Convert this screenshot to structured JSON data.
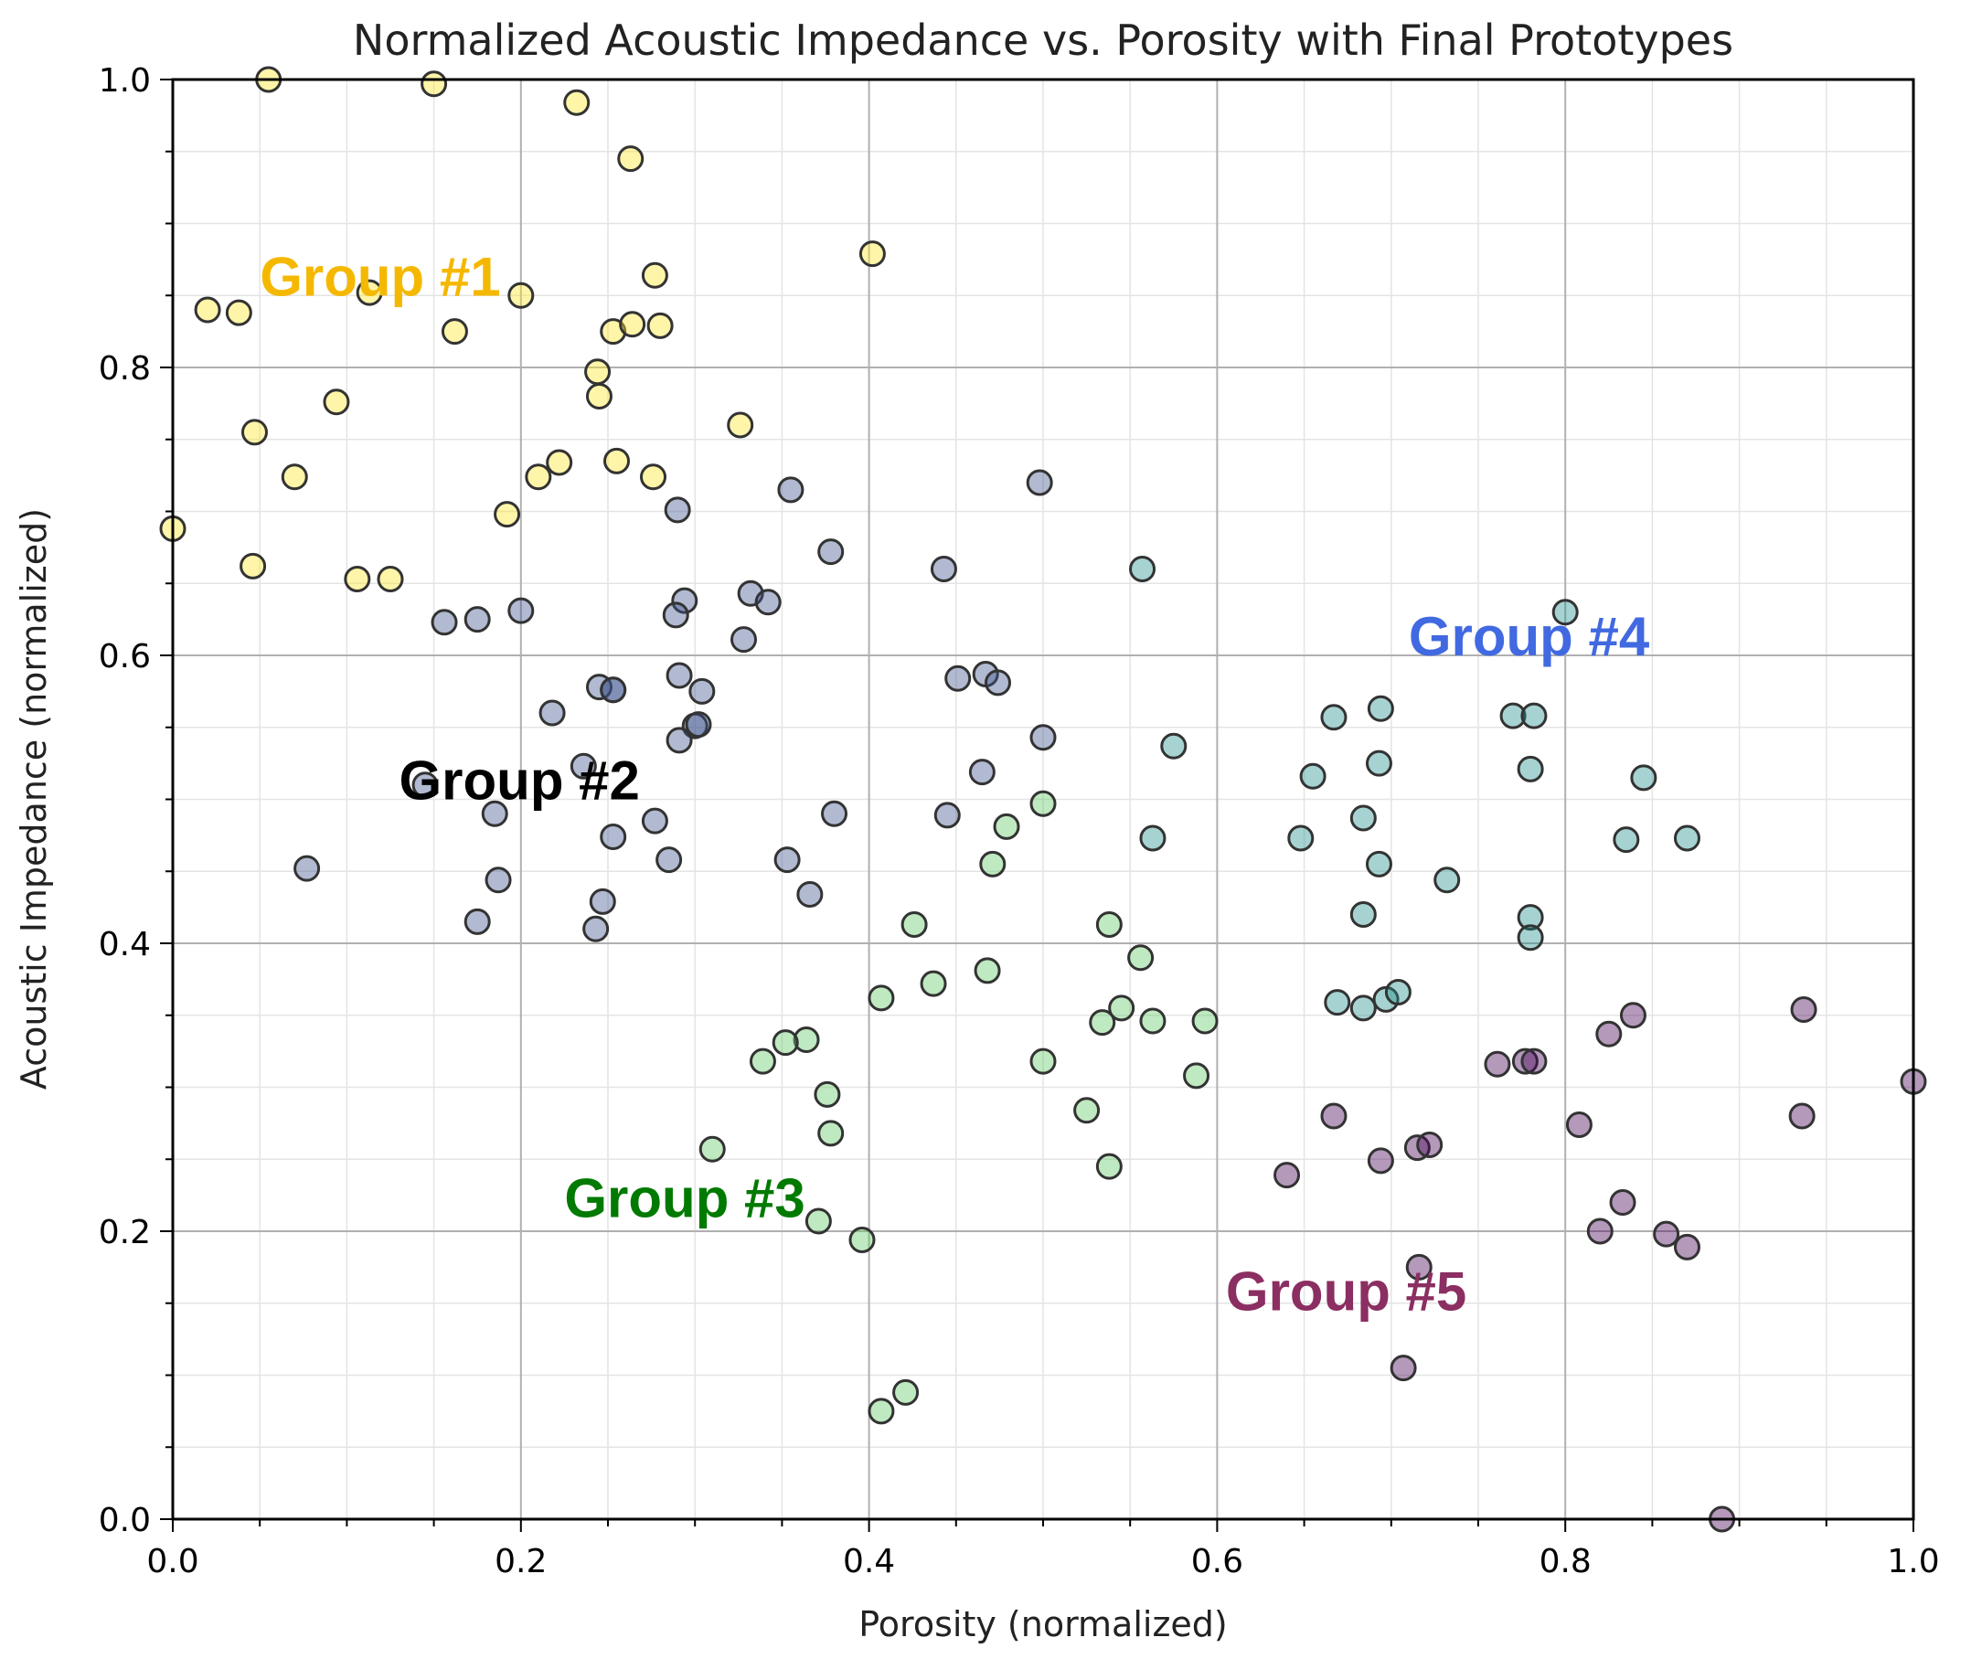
{
  "chart_data": {
    "type": "scatter",
    "title": "Normalized Acoustic Impedance vs. Porosity with Final Prototypes",
    "xlabel": "Porosity (normalized)",
    "ylabel": "Acoustic Impedance (normalized)",
    "xlim": [
      0,
      1
    ],
    "ylim": [
      0,
      1
    ],
    "xticks": [
      "0.0",
      "0.2",
      "0.4",
      "0.6",
      "0.8",
      "1.0"
    ],
    "yticks": [
      "0.0",
      "0.2",
      "0.4",
      "0.6",
      "0.8",
      "1.0"
    ],
    "grid": true,
    "series": [
      {
        "name": "Group #1",
        "color": "#fde725",
        "label_color": "#f5b800",
        "label_pos": [
          0.05,
          0.85
        ],
        "points": [
          [
            0.055,
            1.0
          ],
          [
            0.15,
            0.997
          ],
          [
            0.232,
            0.984
          ],
          [
            0.263,
            0.945
          ],
          [
            0.02,
            0.84
          ],
          [
            0.038,
            0.838
          ],
          [
            0.113,
            0.852
          ],
          [
            0.2,
            0.85
          ],
          [
            0.162,
            0.825
          ],
          [
            0.253,
            0.825
          ],
          [
            0.264,
            0.83
          ],
          [
            0.28,
            0.829
          ],
          [
            0.277,
            0.864
          ],
          [
            0.402,
            0.879
          ],
          [
            0.244,
            0.797
          ],
          [
            0.245,
            0.78
          ],
          [
            0.094,
            0.776
          ],
          [
            0.047,
            0.755
          ],
          [
            0.326,
            0.76
          ],
          [
            0.07,
            0.724
          ],
          [
            0.21,
            0.724
          ],
          [
            0.222,
            0.734
          ],
          [
            0.255,
            0.735
          ],
          [
            0.276,
            0.724
          ],
          [
            0.192,
            0.698
          ],
          [
            0.0,
            0.688
          ],
          [
            0.046,
            0.662
          ],
          [
            0.106,
            0.653
          ],
          [
            0.125,
            0.653
          ]
        ]
      },
      {
        "name": "Group #2",
        "color": "#3b528b",
        "label_color": "#000000",
        "label_pos": [
          0.13,
          0.5
        ],
        "points": [
          [
            0.355,
            0.715
          ],
          [
            0.29,
            0.701
          ],
          [
            0.378,
            0.672
          ],
          [
            0.332,
            0.643
          ],
          [
            0.342,
            0.637
          ],
          [
            0.294,
            0.638
          ],
          [
            0.289,
            0.628
          ],
          [
            0.2,
            0.631
          ],
          [
            0.175,
            0.625
          ],
          [
            0.156,
            0.623
          ],
          [
            0.328,
            0.611
          ],
          [
            0.291,
            0.586
          ],
          [
            0.304,
            0.575
          ],
          [
            0.245,
            0.578
          ],
          [
            0.253,
            0.576
          ],
          [
            0.253,
            0.576
          ],
          [
            0.218,
            0.56
          ],
          [
            0.3,
            0.551
          ],
          [
            0.302,
            0.552
          ],
          [
            0.291,
            0.541
          ],
          [
            0.236,
            0.523
          ],
          [
            0.145,
            0.51
          ],
          [
            0.185,
            0.49
          ],
          [
            0.277,
            0.485
          ],
          [
            0.253,
            0.474
          ],
          [
            0.285,
            0.458
          ],
          [
            0.353,
            0.458
          ],
          [
            0.077,
            0.452
          ],
          [
            0.187,
            0.444
          ],
          [
            0.366,
            0.434
          ],
          [
            0.247,
            0.429
          ],
          [
            0.175,
            0.415
          ],
          [
            0.243,
            0.41
          ],
          [
            0.38,
            0.49
          ],
          [
            0.443,
            0.66
          ],
          [
            0.498,
            0.72
          ],
          [
            0.451,
            0.584
          ],
          [
            0.467,
            0.587
          ],
          [
            0.474,
            0.581
          ],
          [
            0.5,
            0.543
          ],
          [
            0.465,
            0.519
          ],
          [
            0.445,
            0.489
          ]
        ]
      },
      {
        "name": "Group #3",
        "color": "#5ec962",
        "label_color": "#007a00",
        "label_pos": [
          0.225,
          0.21
        ],
        "points": [
          [
            0.5,
            0.497
          ],
          [
            0.479,
            0.481
          ],
          [
            0.471,
            0.455
          ],
          [
            0.426,
            0.413
          ],
          [
            0.538,
            0.413
          ],
          [
            0.556,
            0.39
          ],
          [
            0.468,
            0.381
          ],
          [
            0.437,
            0.372
          ],
          [
            0.407,
            0.362
          ],
          [
            0.545,
            0.355
          ],
          [
            0.534,
            0.345
          ],
          [
            0.563,
            0.346
          ],
          [
            0.593,
            0.346
          ],
          [
            0.364,
            0.333
          ],
          [
            0.352,
            0.331
          ],
          [
            0.339,
            0.318
          ],
          [
            0.5,
            0.318
          ],
          [
            0.588,
            0.308
          ],
          [
            0.376,
            0.295
          ],
          [
            0.378,
            0.268
          ],
          [
            0.525,
            0.284
          ],
          [
            0.31,
            0.257
          ],
          [
            0.538,
            0.245
          ],
          [
            0.371,
            0.207
          ],
          [
            0.396,
            0.194
          ],
          [
            0.421,
            0.088
          ],
          [
            0.407,
            0.075
          ]
        ]
      },
      {
        "name": "Group #4",
        "color": "#21918c",
        "label_color": "#4169e1",
        "label_pos": [
          0.71,
          0.6
        ],
        "points": [
          [
            0.557,
            0.66
          ],
          [
            0.8,
            0.63
          ],
          [
            0.575,
            0.537
          ],
          [
            0.667,
            0.557
          ],
          [
            0.694,
            0.563
          ],
          [
            0.77,
            0.558
          ],
          [
            0.782,
            0.558
          ],
          [
            0.693,
            0.525
          ],
          [
            0.78,
            0.521
          ],
          [
            0.655,
            0.516
          ],
          [
            0.845,
            0.515
          ],
          [
            0.648,
            0.473
          ],
          [
            0.563,
            0.473
          ],
          [
            0.684,
            0.487
          ],
          [
            0.835,
            0.472
          ],
          [
            0.87,
            0.473
          ],
          [
            0.693,
            0.455
          ],
          [
            0.732,
            0.444
          ],
          [
            0.684,
            0.42
          ],
          [
            0.78,
            0.418
          ],
          [
            0.78,
            0.404
          ],
          [
            0.669,
            0.359
          ],
          [
            0.684,
            0.355
          ],
          [
            0.697,
            0.361
          ],
          [
            0.704,
            0.366
          ]
        ]
      },
      {
        "name": "Group #5",
        "color": "#440154",
        "label_color": "#8b2e62",
        "label_pos": [
          0.605,
          0.145
        ],
        "points": [
          [
            0.937,
            0.354
          ],
          [
            0.839,
            0.35
          ],
          [
            0.825,
            0.337
          ],
          [
            0.761,
            0.316
          ],
          [
            0.777,
            0.318
          ],
          [
            0.782,
            0.318
          ],
          [
            1.0,
            0.304
          ],
          [
            0.667,
            0.28
          ],
          [
            0.936,
            0.28
          ],
          [
            0.808,
            0.274
          ],
          [
            0.715,
            0.258
          ],
          [
            0.722,
            0.26
          ],
          [
            0.694,
            0.249
          ],
          [
            0.64,
            0.239
          ],
          [
            0.833,
            0.22
          ],
          [
            0.82,
            0.2
          ],
          [
            0.858,
            0.198
          ],
          [
            0.87,
            0.189
          ],
          [
            0.716,
            0.175
          ],
          [
            0.707,
            0.105
          ],
          [
            0.89,
            0.0
          ]
        ]
      }
    ]
  }
}
